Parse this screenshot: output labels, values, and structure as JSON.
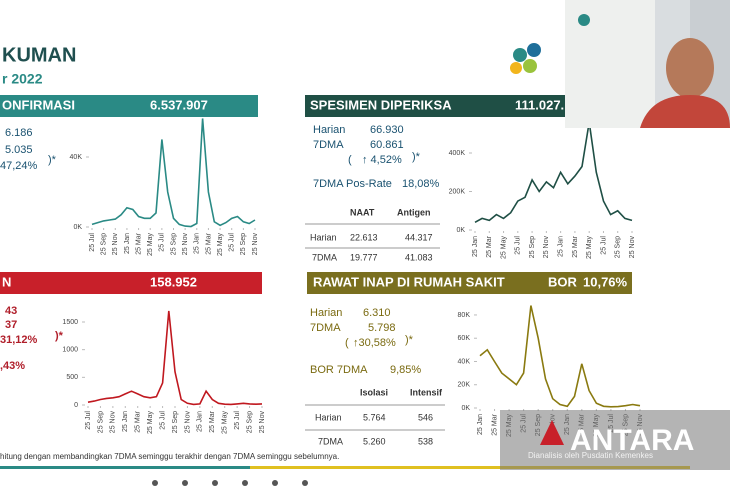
{
  "header": {
    "title": "KUMAN",
    "date": "r 2022"
  },
  "confirmed": {
    "title": "ONFIRMASI",
    "total": "6.537.907",
    "daily": "6.186",
    "dma": "5.035",
    "change": "47,24%",
    "note": ")*"
  },
  "specimens": {
    "title": "SPESIMEN DIPERIKSA",
    "total": "111.027.",
    "daily_label": "Harian",
    "daily": "66.930",
    "dma_label": "7DMA",
    "dma": "60.861",
    "open": "(",
    "change": "↑ 4,52%",
    "note": ")*",
    "posrate_label": "7DMA Pos-Rate",
    "posrate": "18,08%",
    "table": {
      "header": [
        "NAAT",
        "Antigen"
      ],
      "rows": [
        [
          "Harian",
          "22.613",
          "44.317"
        ],
        [
          "7DMA",
          "19.777",
          "41.083"
        ]
      ]
    }
  },
  "deaths": {
    "title": "N",
    "total": "158.952",
    "daily": "43",
    "dma": "37",
    "change": "31,12%",
    "note": ")*",
    "rate": ",43%"
  },
  "hospital": {
    "title": "RAWAT INAP DI RUMAH SAKIT",
    "bor_label": "BOR",
    "bor": "10,76%",
    "daily_label": "Harian",
    "daily": "6.310",
    "dma_label": "7DMA",
    "dma": "5.798",
    "open": "(",
    "change": "↑30,58%",
    "note": ")*",
    "bor7_label": "BOR 7DMA",
    "bor7": "9,85%",
    "table": {
      "header": [
        "Isolasi",
        "Intensif"
      ],
      "rows": [
        [
          "Harian",
          "5.764",
          "546"
        ],
        [
          "7DMA",
          "5.260",
          "538"
        ]
      ]
    }
  },
  "footer": {
    "note": "hitung dengan membandingkan 7DMA seminggu terakhir dengan 7DMA seminggu sebelumnya.",
    "credit": "Dianalisis oleh Pusdatin Kemenkes",
    "watermark": "ANTARA"
  },
  "chart_data": [
    {
      "type": "line",
      "color": "#2a8a85",
      "values": [
        1500,
        2500,
        3500,
        4000,
        4500,
        7000,
        11000,
        10000,
        6000,
        5000,
        5000,
        8000,
        50000,
        20000,
        5000,
        1500,
        500,
        300,
        2000,
        62000,
        20000,
        3000,
        1000,
        2500,
        5000,
        6000,
        3000,
        2000,
        4000
      ],
      "ylim": [
        0,
        70000
      ],
      "yticks": [
        {
          "value": 0,
          "label": "0K"
        },
        {
          "value": 40000,
          "label": "40K"
        }
      ],
      "xticks": [
        {
          "value": 0,
          "label": "25 Jul"
        },
        {
          "value": 2,
          "label": "25 Sep"
        },
        {
          "value": 4,
          "label": "25 Nov"
        },
        {
          "value": 6,
          "label": "25 Jan"
        },
        {
          "value": 8,
          "label": "25 Mar"
        },
        {
          "value": 10,
          "label": "25 May"
        },
        {
          "value": 12,
          "label": "25 Jul"
        },
        {
          "value": 14,
          "label": "25 Sep"
        },
        {
          "value": 16,
          "label": "25 Nov"
        },
        {
          "value": 18,
          "label": "25 Jan"
        },
        {
          "value": 20,
          "label": "25 Mar"
        },
        {
          "value": 22,
          "label": "25 May"
        },
        {
          "value": 24,
          "label": "25 Jul"
        },
        {
          "value": 26,
          "label": "25 Sep"
        },
        {
          "value": 28,
          "label": "25 Nov"
        }
      ]
    },
    {
      "type": "line",
      "color": "#1f4f45",
      "values": [
        40000,
        60000,
        50000,
        80000,
        60000,
        90000,
        150000,
        170000,
        260000,
        200000,
        250000,
        220000,
        300000,
        240000,
        280000,
        330000,
        560000,
        300000,
        150000,
        80000,
        100000,
        60000,
        50000
      ],
      "ylim": [
        0,
        600000
      ],
      "yticks": [
        {
          "value": 0,
          "label": "0K"
        },
        {
          "value": 200000,
          "label": "200K"
        },
        {
          "value": 400000,
          "label": "400K"
        }
      ],
      "xticks": [
        {
          "value": 0,
          "label": "25 Jan"
        },
        {
          "value": 2,
          "label": "25 Mar"
        },
        {
          "value": 4,
          "label": "25 May"
        },
        {
          "value": 6,
          "label": "25 Jul"
        },
        {
          "value": 8,
          "label": "25 Sep"
        },
        {
          "value": 10,
          "label": "25 Nov"
        },
        {
          "value": 12,
          "label": "25 Jan"
        },
        {
          "value": 14,
          "label": "25 Mar"
        },
        {
          "value": 16,
          "label": "25 May"
        },
        {
          "value": 18,
          "label": "25 Jul"
        },
        {
          "value": 20,
          "label": "25 Sep"
        },
        {
          "value": 22,
          "label": "25 Nov"
        }
      ]
    },
    {
      "type": "line",
      "color": "#c0181f",
      "values": [
        50,
        70,
        100,
        120,
        130,
        150,
        200,
        250,
        200,
        150,
        130,
        150,
        400,
        1700,
        600,
        100,
        30,
        10,
        20,
        250,
        100,
        30,
        15,
        10,
        20,
        30,
        20,
        15,
        20
      ],
      "ylim": [
        0,
        1800
      ],
      "yticks": [
        0,
        500,
        1000,
        1500
      ],
      "xticks": [
        {
          "value": 0,
          "label": "25 Jul"
        },
        {
          "value": 2,
          "label": "25 Sep"
        },
        {
          "value": 4,
          "label": "25 Nov"
        },
        {
          "value": 6,
          "label": "25 Jan"
        },
        {
          "value": 8,
          "label": "25 Mar"
        },
        {
          "value": 10,
          "label": "25 May"
        },
        {
          "value": 12,
          "label": "25 Jul"
        },
        {
          "value": 14,
          "label": "25 Sep"
        },
        {
          "value": 16,
          "label": "25 Nov"
        },
        {
          "value": 18,
          "label": "25 Jan"
        },
        {
          "value": 20,
          "label": "25 Mar"
        },
        {
          "value": 22,
          "label": "25 May"
        },
        {
          "value": 24,
          "label": "25 Jul"
        },
        {
          "value": 26,
          "label": "25 Sep"
        },
        {
          "value": 28,
          "label": "25 Nov"
        }
      ]
    },
    {
      "type": "line",
      "color": "#8a7a10",
      "values": [
        45000,
        50000,
        40000,
        30000,
        25000,
        20000,
        30000,
        88000,
        60000,
        25000,
        8000,
        3000,
        1500,
        10000,
        38000,
        15000,
        4000,
        1500,
        1000,
        1200,
        2000,
        3000,
        2000
      ],
      "ylim": [
        0,
        95000
      ],
      "yticks": [
        {
          "value": 0,
          "label": "0K"
        },
        {
          "value": 20000,
          "label": "20K"
        },
        {
          "value": 40000,
          "label": "40K"
        },
        {
          "value": 60000,
          "label": "60K"
        },
        {
          "value": 80000,
          "label": "80K"
        }
      ],
      "xticks": [
        {
          "value": 0,
          "label": "25 Jan"
        },
        {
          "value": 2,
          "label": "25 Mar"
        },
        {
          "value": 4,
          "label": "25 May"
        },
        {
          "value": 6,
          "label": "25 Jul"
        },
        {
          "value": 8,
          "label": "25 Sep"
        },
        {
          "value": 10,
          "label": "25 Nov"
        },
        {
          "value": 12,
          "label": "25 Jan"
        },
        {
          "value": 14,
          "label": "25 Mar"
        },
        {
          "value": 16,
          "label": "25 May"
        },
        {
          "value": 18,
          "label": "25 Jul"
        },
        {
          "value": 20,
          "label": "25 Sep"
        },
        {
          "value": 22,
          "label": "25 Nov"
        }
      ]
    }
  ]
}
